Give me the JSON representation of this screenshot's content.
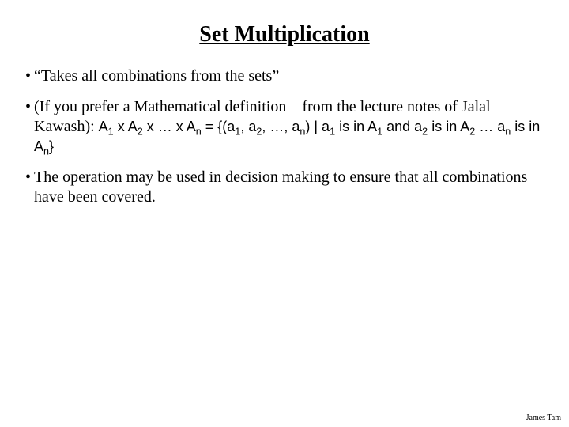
{
  "title": "Set Multiplication",
  "bullets": {
    "b1": "“Takes all combinations from the sets”",
    "b2_lead": "(If you prefer a Mathematical definition – from the lecture notes of Jalal Kawash): ",
    "b2_math_p1": "A",
    "b2_math_p2": " x A",
    "b2_math_p3": " x … x A",
    "b2_math_p4": " = {(a",
    "b2_math_p5": ", a",
    "b2_math_p6": ", …, a",
    "b2_math_p7": ") | a",
    "b2_math_p8": " is in A",
    "b2_math_p9": " and a",
    "b2_math_p10": " is in A",
    "b2_math_p11": " … a",
    "b2_math_p12": " is in A",
    "b2_math_p13": "}",
    "sub1": "1",
    "sub2": "2",
    "subn": "n",
    "b3": "The operation may be used in decision making to ensure that all combinations have been covered."
  },
  "footer": "James Tam",
  "colors": {
    "text": "#000000",
    "bg": "#ffffff"
  }
}
